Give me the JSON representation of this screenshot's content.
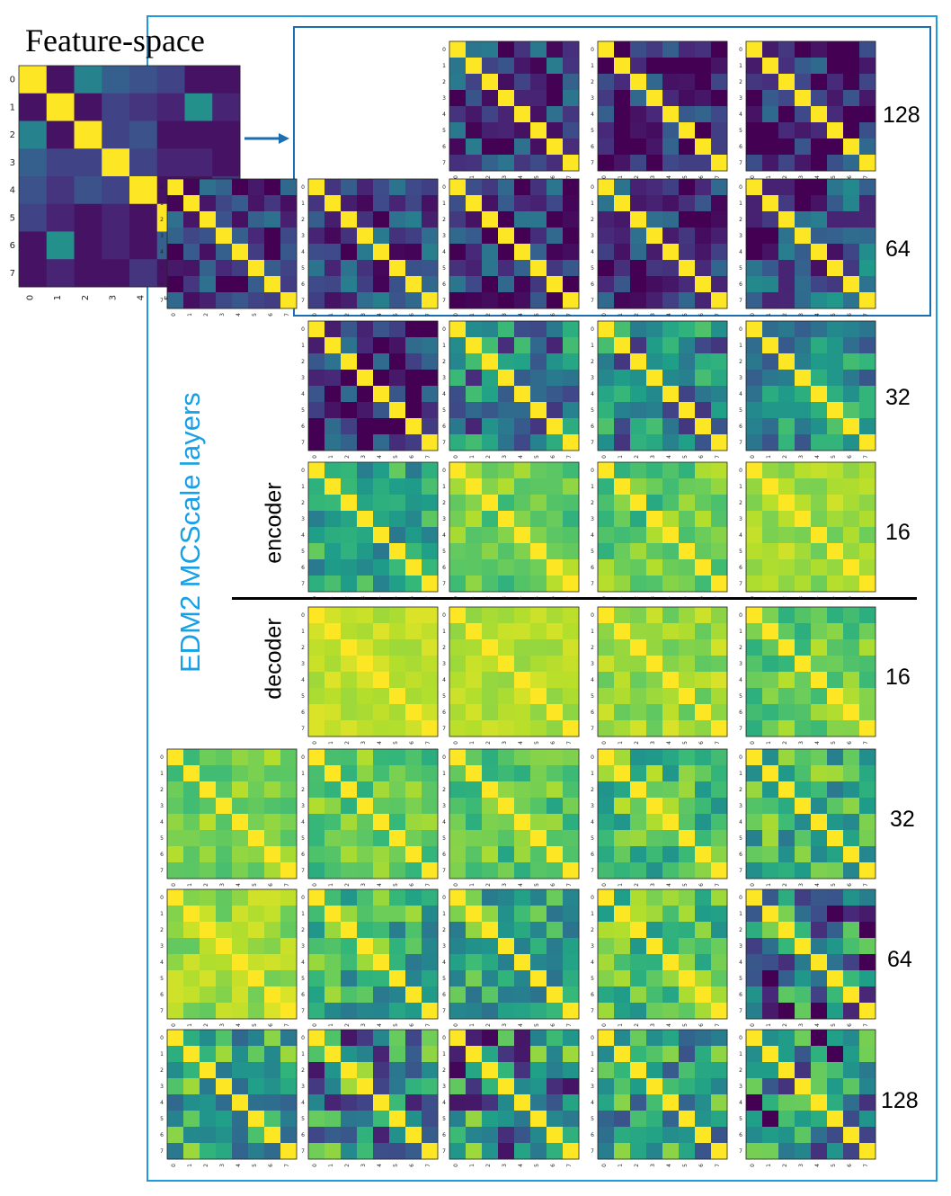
{
  "figure": {
    "title": "Feature-space",
    "vertical_label": "EDM2 MCScale layers",
    "encoder_label": "encoder",
    "decoder_label": "decoder",
    "row_labels": [
      "128",
      "64",
      "32",
      "16",
      "16",
      "32",
      "64",
      "128"
    ],
    "colors": {
      "frame": "#1e9be0",
      "inner_frame": "#1b6fb1",
      "arrow": "#1b6fb1",
      "label_blue": "#17a0e6"
    }
  },
  "chart_data": {
    "type": "heatmap",
    "colormap": "viridis",
    "value_range": [
      0,
      1
    ],
    "tick_labels": [
      "0",
      "1",
      "2",
      "3",
      "4",
      "5",
      "6",
      "7"
    ],
    "feature_space": [
      [
        1.0,
        0.05,
        0.45,
        0.3,
        0.25,
        0.2,
        0.05,
        0.05
      ],
      [
        0.05,
        1.0,
        0.05,
        0.2,
        0.15,
        0.1,
        0.5,
        0.1
      ],
      [
        0.45,
        0.05,
        1.0,
        0.2,
        0.25,
        0.05,
        0.05,
        0.05
      ],
      [
        0.3,
        0.2,
        0.2,
        1.0,
        0.2,
        0.1,
        0.1,
        0.05
      ],
      [
        0.25,
        0.15,
        0.25,
        0.2,
        1.0,
        0.05,
        0.05,
        0.15
      ],
      [
        0.2,
        0.1,
        0.05,
        0.1,
        0.05,
        1.0,
        0.3,
        0.05
      ],
      [
        0.05,
        0.5,
        0.05,
        0.1,
        0.05,
        0.3,
        1.0,
        0.1
      ],
      [
        0.05,
        0.1,
        0.05,
        0.05,
        0.15,
        0.05,
        0.1,
        1.0
      ]
    ],
    "rows": [
      {
        "label": "128",
        "section": "encoder",
        "diag_off": [
          0.2,
          0.2,
          0.1,
          0.1
        ],
        "spread": [
          0.2,
          0.25,
          0.25,
          0.25
        ]
      },
      {
        "label": "64",
        "section": "encoder",
        "diag_off": [
          0.2,
          0.2,
          0.15,
          0.15,
          0.25
        ],
        "spread": [
          0.25,
          0.25,
          0.25,
          0.25,
          0.3
        ]
      },
      {
        "label": "32",
        "section": "encoder",
        "diag_off": [
          0.15,
          0.4,
          0.45,
          0.5
        ],
        "spread": [
          0.25,
          0.3,
          0.3,
          0.25
        ]
      },
      {
        "label": "16",
        "section": "encoder",
        "diag_off": [
          0.6,
          0.75,
          0.75,
          0.85
        ],
        "spread": [
          0.2,
          0.15,
          0.15,
          0.08
        ]
      },
      {
        "label": "16",
        "section": "decoder",
        "diag_off": [
          0.9,
          0.88,
          0.85,
          0.75
        ],
        "spread": [
          0.05,
          0.06,
          0.1,
          0.15
        ]
      },
      {
        "label": "32",
        "section": "decoder",
        "diag_off": [
          0.78,
          0.75,
          0.72,
          0.7,
          0.65
        ],
        "spread": [
          0.12,
          0.15,
          0.15,
          0.2,
          0.25
        ]
      },
      {
        "label": "64",
        "section": "decoder",
        "diag_off": [
          0.85,
          0.65,
          0.62,
          0.7,
          0.35
        ],
        "spread": [
          0.1,
          0.25,
          0.25,
          0.2,
          0.45
        ]
      },
      {
        "label": "128",
        "section": "decoder",
        "diag_off": [
          0.6,
          0.4,
          0.45,
          0.55,
          0.35
        ],
        "spread": [
          0.3,
          0.5,
          0.45,
          0.3,
          0.45
        ]
      }
    ]
  }
}
